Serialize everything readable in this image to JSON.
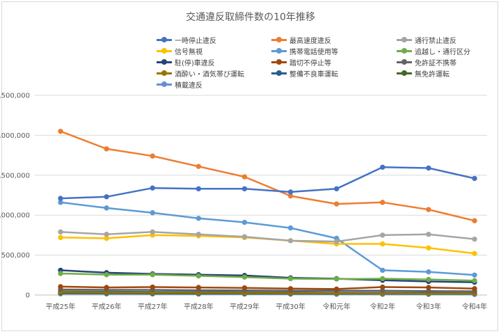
{
  "chart_data": {
    "type": "line",
    "title": "交通違反取締件数の10年推移",
    "categories": [
      "平成25年",
      "平成26年",
      "平成27年",
      "平成28年",
      "平成29年",
      "平成30年",
      "令和元年",
      "令和2年",
      "令和3年",
      "令和4年"
    ],
    "ylim": [
      0,
      2500000
    ],
    "yticks": [
      "0",
      "500,000",
      "1,000,000",
      "1,500,000",
      "2,000,000",
      "2,500,000"
    ],
    "grid": true,
    "legend_position": "top",
    "series": [
      {
        "name": "一時停止違反",
        "color": "#4472c4",
        "values": [
          1210000,
          1230000,
          1340000,
          1330000,
          1330000,
          1290000,
          1330000,
          1600000,
          1590000,
          1460000
        ]
      },
      {
        "name": "最高速度違反",
        "color": "#ed7d31",
        "values": [
          2050000,
          1830000,
          1740000,
          1610000,
          1480000,
          1240000,
          1140000,
          1160000,
          1070000,
          930000
        ]
      },
      {
        "name": "通行禁止違反",
        "color": "#a5a5a5",
        "values": [
          790000,
          760000,
          790000,
          760000,
          730000,
          680000,
          670000,
          750000,
          760000,
          700000
        ]
      },
      {
        "name": "信号無視",
        "color": "#ffc000",
        "values": [
          720000,
          710000,
          750000,
          740000,
          720000,
          680000,
          640000,
          640000,
          590000,
          520000
        ]
      },
      {
        "name": "携帯電話使用等",
        "color": "#5b9bd5",
        "values": [
          1160000,
          1090000,
          1030000,
          960000,
          910000,
          840000,
          710000,
          310000,
          290000,
          250000
        ]
      },
      {
        "name": "追越し・通行区分",
        "color": "#70ad47",
        "values": [
          270000,
          255000,
          255000,
          240000,
          225000,
          205000,
          200000,
          205000,
          195000,
          180000
        ]
      },
      {
        "name": "駐(停)車違反",
        "color": "#264478",
        "values": [
          310000,
          280000,
          265000,
          255000,
          245000,
          215000,
          205000,
          185000,
          170000,
          160000
        ]
      },
      {
        "name": "踏切不停止等",
        "color": "#9e480e",
        "values": [
          105000,
          95000,
          100000,
          95000,
          90000,
          80000,
          75000,
          100000,
          95000,
          80000
        ]
      },
      {
        "name": "免許証不携帯",
        "color": "#636363",
        "values": [
          70000,
          65000,
          65000,
          60000,
          58000,
          55000,
          55000,
          55000,
          50000,
          48000
        ]
      },
      {
        "name": "酒酔い・酒気帯び運転",
        "color": "#997300",
        "values": [
          40000,
          35000,
          33000,
          30000,
          28000,
          25000,
          23000,
          21000,
          20000,
          19000
        ]
      },
      {
        "name": "整備不良車運転",
        "color": "#255e91",
        "values": [
          45000,
          43000,
          40000,
          38000,
          36000,
          33000,
          30000,
          30000,
          28000,
          26000
        ]
      },
      {
        "name": "無免許運転",
        "color": "#43682b",
        "values": [
          25000,
          24000,
          22000,
          20000,
          19000,
          18000,
          17000,
          17000,
          16000,
          15000
        ]
      },
      {
        "name": "積載違反",
        "color": "#698ed0",
        "values": [
          15000,
          14000,
          13000,
          12000,
          12000,
          11000,
          10000,
          9000,
          9000,
          8000
        ]
      }
    ]
  }
}
